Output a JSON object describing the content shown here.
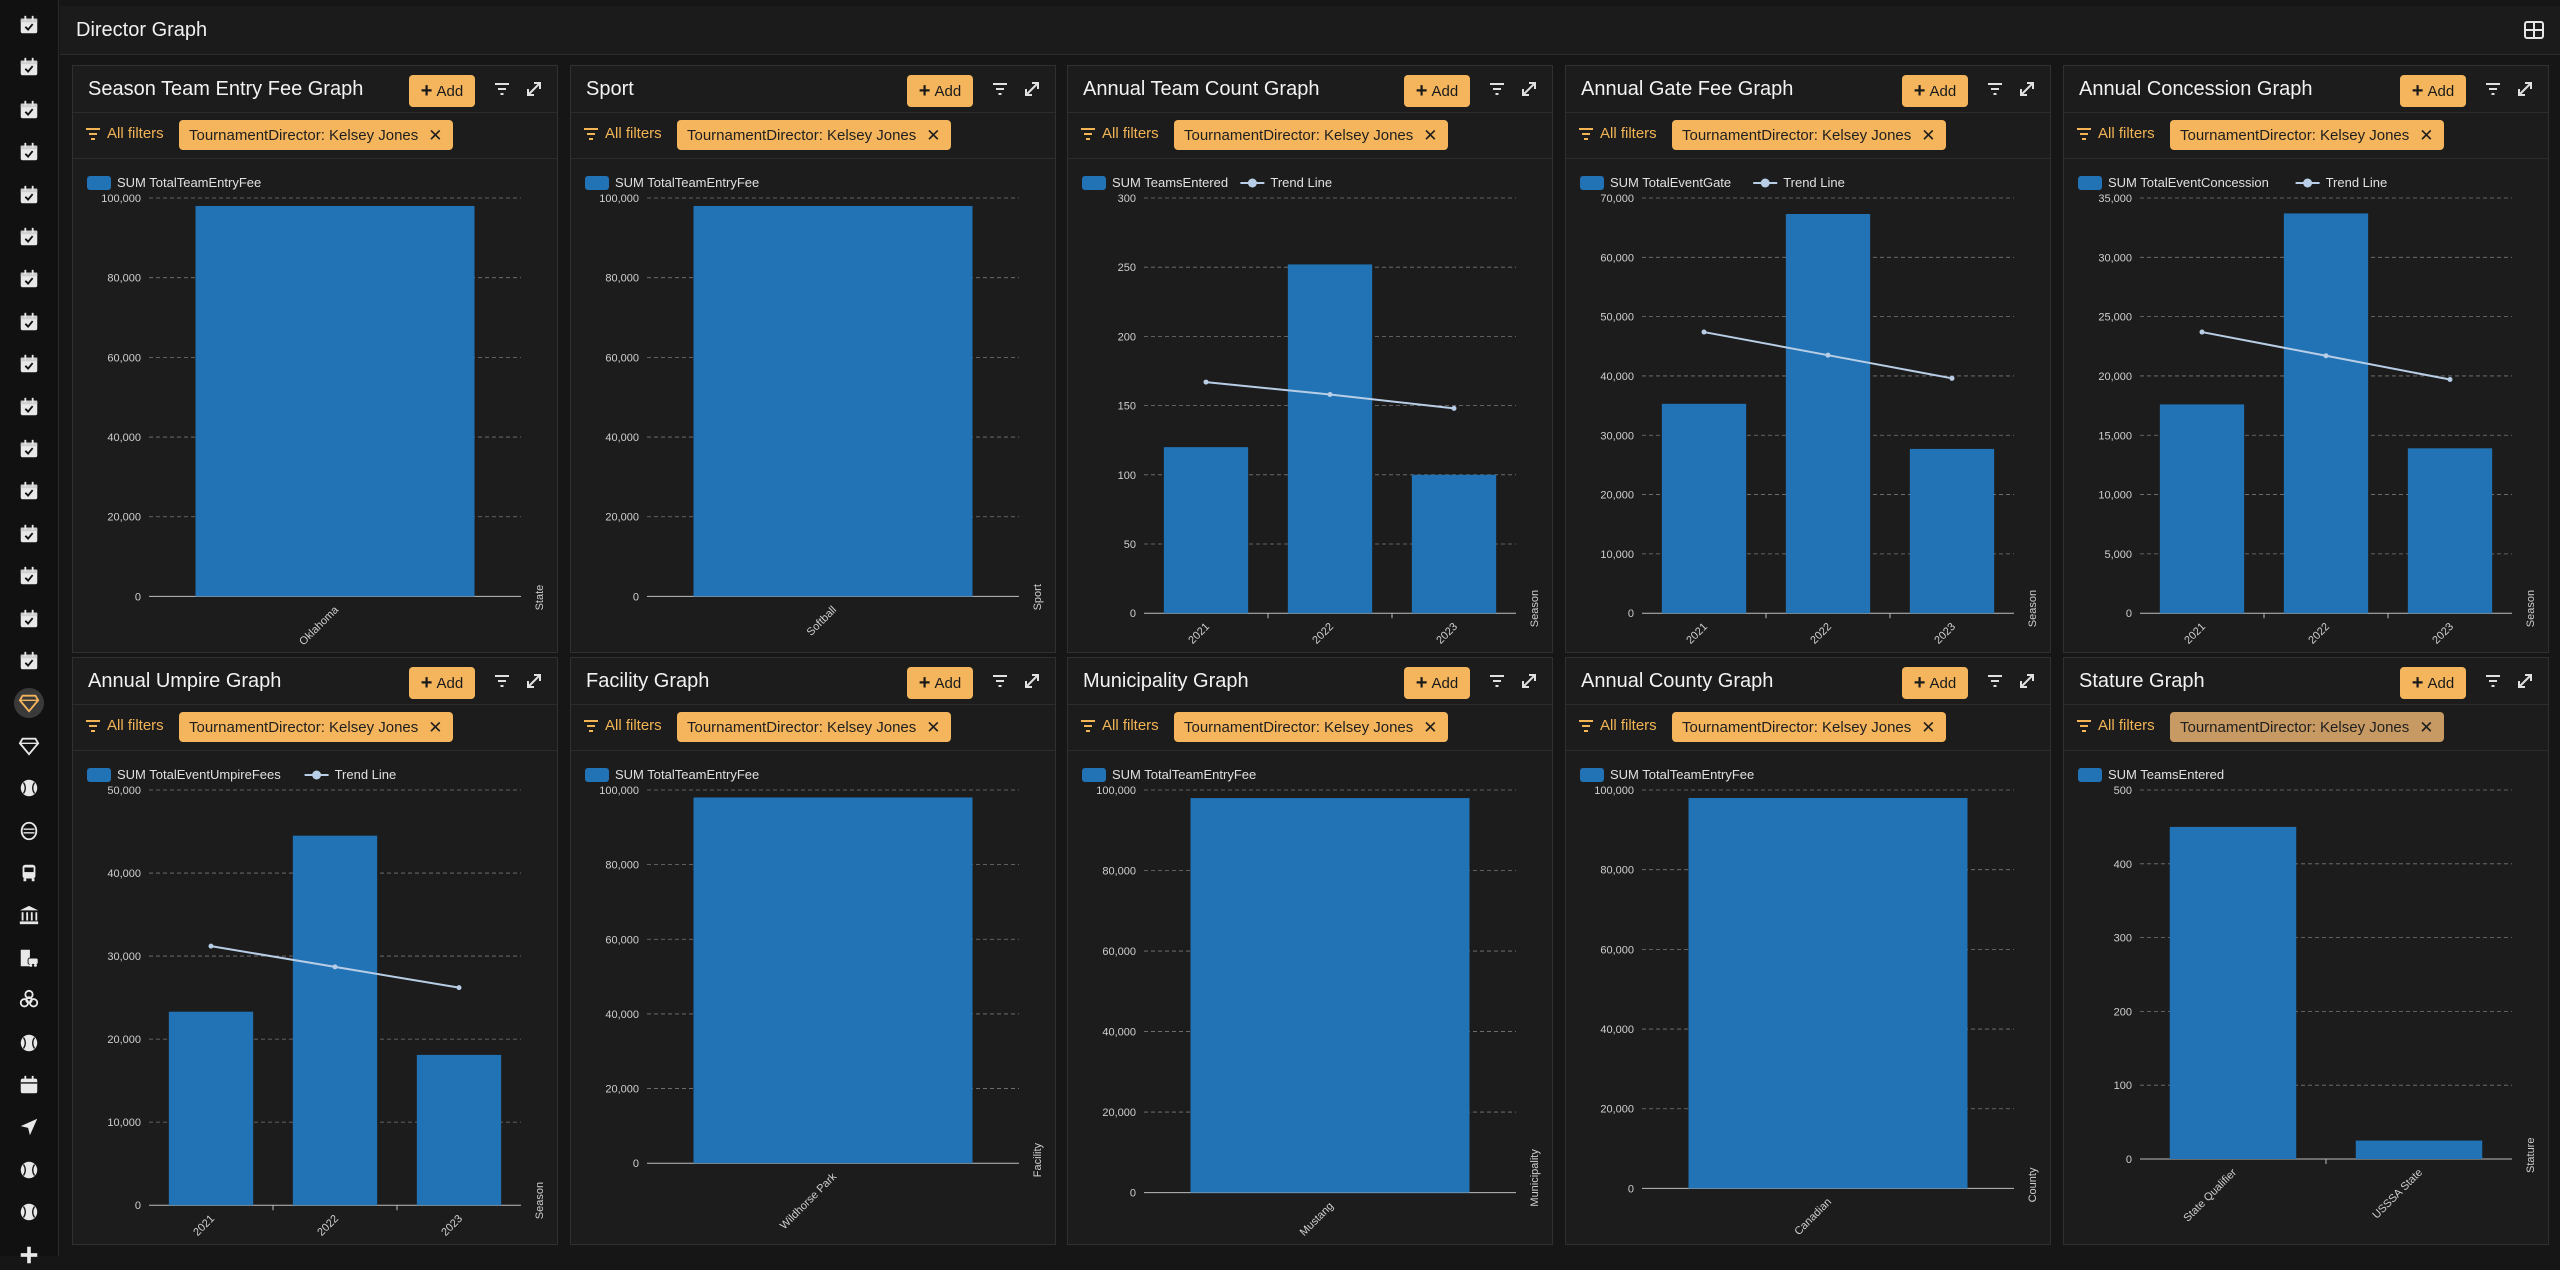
{
  "app": {
    "title": "Director Graph"
  },
  "theme": {
    "bar_color": "#2273b5",
    "trend_color": "#b8cde6",
    "accent": "#f5b55c"
  },
  "sidebar": {
    "items": [
      {
        "icon": "calendar-check-icon"
      },
      {
        "icon": "calendar-check-icon"
      },
      {
        "icon": "calendar-check-icon"
      },
      {
        "icon": "calendar-check-icon"
      },
      {
        "icon": "calendar-check-icon"
      },
      {
        "icon": "calendar-check-icon"
      },
      {
        "icon": "calendar-check-icon"
      },
      {
        "icon": "calendar-check-icon"
      },
      {
        "icon": "calendar-check-icon"
      },
      {
        "icon": "calendar-check-icon"
      },
      {
        "icon": "calendar-check-icon"
      },
      {
        "icon": "calendar-check-icon"
      },
      {
        "icon": "calendar-check-icon"
      },
      {
        "icon": "calendar-check-icon"
      },
      {
        "icon": "calendar-check-icon"
      },
      {
        "icon": "calendar-check-icon"
      },
      {
        "icon": "diamond-icon",
        "active": true
      },
      {
        "icon": "diamond-icon"
      },
      {
        "icon": "softball-icon"
      },
      {
        "icon": "mask-icon"
      },
      {
        "icon": "bus-icon"
      },
      {
        "icon": "bank-icon"
      },
      {
        "icon": "building-car-icon"
      },
      {
        "icon": "biohazard-icon"
      },
      {
        "icon": "softball-icon"
      },
      {
        "icon": "calendar-icon"
      },
      {
        "icon": "location-arrow-icon"
      },
      {
        "icon": "softball-icon"
      },
      {
        "icon": "softball-icon"
      },
      {
        "icon": "plus-icon"
      }
    ]
  },
  "common": {
    "add_label": "Add",
    "all_filters_label": "All filters"
  },
  "panels": [
    {
      "title": "Season Team Entry Fee Graph",
      "filter_chip": "TournamentDirector: Kelsey Jones",
      "chart_data": {
        "type": "bar",
        "series": [
          {
            "name": "SUM TotalTeamEntryFee",
            "values": [
              98000
            ]
          }
        ],
        "categories": [
          "Oklahoma"
        ],
        "xlabel": "State",
        "yticks": [
          "0",
          "20,000",
          "40,000",
          "60,000",
          "80,000",
          "100,000"
        ],
        "ylim": [
          0,
          100000
        ],
        "grid": true,
        "legend": "top-left"
      }
    },
    {
      "title": "Sport",
      "filter_chip": "TournamentDirector: Kelsey Jones",
      "chart_data": {
        "type": "bar",
        "series": [
          {
            "name": "SUM TotalTeamEntryFee",
            "values": [
              98000
            ]
          }
        ],
        "categories": [
          "Softball"
        ],
        "xlabel": "Sport",
        "yticks": [
          "0",
          "20,000",
          "40,000",
          "60,000",
          "80,000",
          "100,000"
        ],
        "ylim": [
          0,
          100000
        ],
        "grid": true,
        "legend": "top-left"
      }
    },
    {
      "title": "Annual Team Count Graph",
      "filter_chip": "TournamentDirector: Kelsey Jones",
      "chart_data": {
        "type": "bar",
        "series": [
          {
            "name": "SUM TeamsEntered",
            "values": [
              120,
              252,
              100
            ]
          }
        ],
        "trend": {
          "name": "Trend Line",
          "values": [
            167,
            158,
            148
          ]
        },
        "categories": [
          "2021",
          "2022",
          "2023"
        ],
        "xlabel": "Season",
        "yticks": [
          "0",
          "50",
          "100",
          "150",
          "200",
          "250",
          "300"
        ],
        "ylim": [
          0,
          300
        ],
        "grid": true,
        "legend": "top-left"
      }
    },
    {
      "title": "Annual Gate Fee Graph",
      "filter_chip": "TournamentDirector: Kelsey Jones",
      "chart_data": {
        "type": "bar",
        "series": [
          {
            "name": "SUM TotalEventGate",
            "values": [
              35300,
              67300,
              27700
            ]
          }
        ],
        "trend": {
          "name": "Trend Line",
          "values": [
            47400,
            43500,
            39600
          ]
        },
        "categories": [
          "2021",
          "2022",
          "2023"
        ],
        "xlabel": "Season",
        "yticks": [
          "0",
          "10,000",
          "20,000",
          "30,000",
          "40,000",
          "50,000",
          "60,000",
          "70,000"
        ],
        "ylim": [
          0,
          70000
        ],
        "grid": true,
        "legend": "top-left"
      }
    },
    {
      "title": "Annual Concession Graph",
      "filter_chip": "TournamentDirector: Kelsey Jones",
      "chart_data": {
        "type": "bar",
        "series": [
          {
            "name": "SUM TotalEventConcession",
            "values": [
              17600,
              33700,
              13900
            ]
          }
        ],
        "trend": {
          "name": "Trend Line",
          "values": [
            23700,
            21700,
            19700
          ]
        },
        "categories": [
          "2021",
          "2022",
          "2023"
        ],
        "xlabel": "Season",
        "yticks": [
          "0",
          "5,000",
          "10,000",
          "15,000",
          "20,000",
          "25,000",
          "30,000",
          "35,000"
        ],
        "ylim": [
          0,
          35000
        ],
        "grid": true,
        "legend": "top-left"
      }
    },
    {
      "title": "Annual Umpire Graph",
      "filter_chip": "TournamentDirector: Kelsey Jones",
      "chart_data": {
        "type": "bar",
        "series": [
          {
            "name": "SUM TotalEventUmpireFees",
            "values": [
              23300,
              44500,
              18100
            ]
          }
        ],
        "trend": {
          "name": "Trend Line",
          "values": [
            31200,
            28700,
            26200
          ]
        },
        "categories": [
          "2021",
          "2022",
          "2023"
        ],
        "xlabel": "Season",
        "yticks": [
          "0",
          "10,000",
          "20,000",
          "30,000",
          "40,000",
          "50,000"
        ],
        "ylim": [
          0,
          50000
        ],
        "grid": true,
        "legend": "top-left"
      }
    },
    {
      "title": "Facility Graph",
      "filter_chip": "TournamentDirector: Kelsey Jones",
      "chart_data": {
        "type": "bar",
        "series": [
          {
            "name": "SUM TotalTeamEntryFee",
            "values": [
              98000
            ]
          }
        ],
        "categories": [
          "Wildhorse Park"
        ],
        "xlabel": "Facility",
        "yticks": [
          "0",
          "20,000",
          "40,000",
          "60,000",
          "80,000",
          "100,000"
        ],
        "ylim": [
          0,
          100000
        ],
        "grid": true,
        "legend": "top-left"
      }
    },
    {
      "title": "Municipality Graph",
      "filter_chip": "TournamentDirector: Kelsey Jones",
      "chart_data": {
        "type": "bar",
        "series": [
          {
            "name": "SUM TotalTeamEntryFee",
            "values": [
              98000
            ]
          }
        ],
        "categories": [
          "Mustang"
        ],
        "xlabel": "Municipality",
        "yticks": [
          "0",
          "20,000",
          "40,000",
          "60,000",
          "80,000",
          "100,000"
        ],
        "ylim": [
          0,
          100000
        ],
        "grid": true,
        "legend": "top-left"
      }
    },
    {
      "title": "Annual County Graph",
      "filter_chip": "TournamentDirector: Kelsey Jones",
      "chart_data": {
        "type": "bar",
        "series": [
          {
            "name": "SUM TotalTeamEntryFee",
            "values": [
              98000
            ]
          }
        ],
        "categories": [
          "Canadian"
        ],
        "xlabel": "County",
        "yticks": [
          "0",
          "20,000",
          "40,000",
          "60,000",
          "80,000",
          "100,000"
        ],
        "ylim": [
          0,
          100000
        ],
        "grid": true,
        "legend": "top-left"
      }
    },
    {
      "title": "Stature Graph",
      "filter_chip": "TournamentDirector: Kelsey Jones",
      "chip_hover": true,
      "chart_data": {
        "type": "bar",
        "series": [
          {
            "name": "SUM TeamsEntered",
            "values": [
              450,
              25
            ]
          }
        ],
        "categories": [
          "State Qualifier",
          "USSSA State"
        ],
        "xlabel": "Stature",
        "yticks": [
          "0",
          "100",
          "200",
          "300",
          "400",
          "500"
        ],
        "ylim": [
          0,
          500
        ],
        "grid": true,
        "legend": "top-left"
      }
    }
  ]
}
